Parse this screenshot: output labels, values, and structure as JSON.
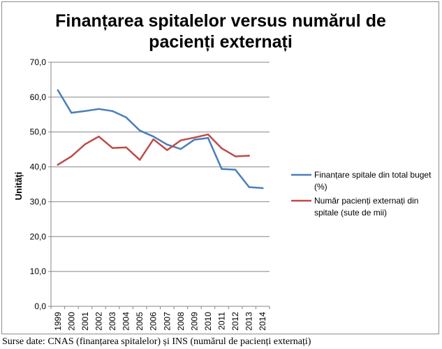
{
  "chart_data": {
    "type": "line",
    "title_lines": [
      "Finanțarea spitalelor versus numărul de",
      "pacienți externați"
    ],
    "ylabel": "Unități",
    "xlabel": "",
    "categories": [
      "1999",
      "2000",
      "2001",
      "2002",
      "2003",
      "2004",
      "2005",
      "2006",
      "2007",
      "2008",
      "2009",
      "2010",
      "2011",
      "2012",
      "2013",
      "2014"
    ],
    "ylim": [
      0,
      70
    ],
    "ytick_labels": [
      "0,0",
      "10,0",
      "20,0",
      "30,0",
      "40,0",
      "50,0",
      "60,0",
      "70,0"
    ],
    "grid": true,
    "legend_position": "right",
    "series": [
      {
        "name_lines": [
          "Finanțare spitale din total buget",
          "(%)"
        ],
        "color": "#4a7ebb",
        "values": [
          62.0,
          55.5,
          56.0,
          56.6,
          56.0,
          54.2,
          50.4,
          48.7,
          46.4,
          45.1,
          47.8,
          48.3,
          39.4,
          39.2,
          34.2,
          33.9
        ]
      },
      {
        "name_lines": [
          "Număr pacienți externați din",
          "spitale (sute de mii)"
        ],
        "color": "#be4b48",
        "values": [
          40.6,
          43.0,
          46.5,
          48.7,
          45.4,
          45.6,
          42.0,
          47.9,
          44.8,
          47.6,
          48.4,
          49.3,
          45.3,
          43.0,
          43.2,
          null
        ]
      }
    ]
  },
  "source_note": "Surse date: CNAS (finanțarea spitalelor)  și INS (numărul  de pacienți  externați)"
}
